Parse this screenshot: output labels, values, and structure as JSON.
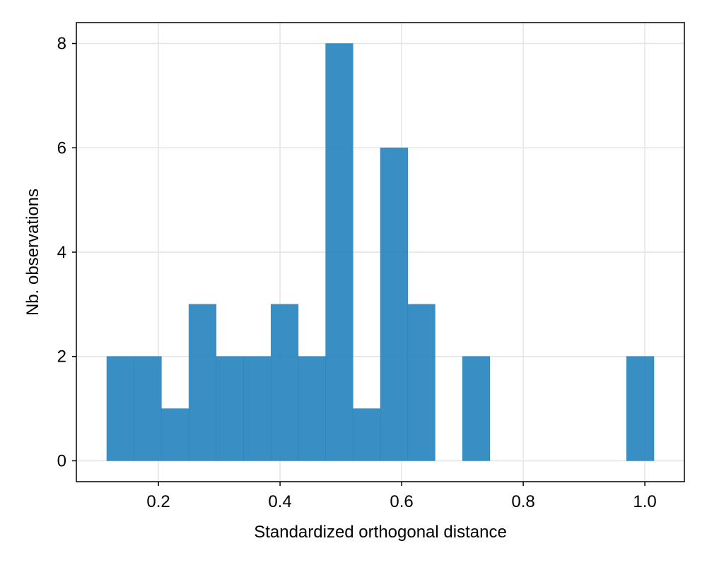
{
  "chart_data": {
    "type": "bar",
    "subtype": "histogram",
    "title": "",
    "xlabel": "Standardized orthogonal distance",
    "ylabel": "Nb. observations",
    "xlim": [
      0.065,
      1.065
    ],
    "ylim": [
      -0.4,
      8.4
    ],
    "xticks": [
      0.2,
      0.4,
      0.6,
      0.8,
      1.0
    ],
    "xtick_labels": [
      "0.2",
      "0.4",
      "0.6",
      "0.8",
      "1.0"
    ],
    "yticks": [
      0,
      2,
      4,
      6,
      8
    ],
    "ytick_labels": [
      "0",
      "2",
      "4",
      "6",
      "8"
    ],
    "grid": true,
    "legend": "none",
    "bar_color": "#2a85be",
    "grid_color": "#e4e4e4",
    "bins": [
      {
        "x0": 0.115,
        "x1": 0.16,
        "count": 2
      },
      {
        "x0": 0.16,
        "x1": 0.205,
        "count": 2
      },
      {
        "x0": 0.205,
        "x1": 0.25,
        "count": 1
      },
      {
        "x0": 0.25,
        "x1": 0.295,
        "count": 3
      },
      {
        "x0": 0.295,
        "x1": 0.34,
        "count": 2
      },
      {
        "x0": 0.34,
        "x1": 0.385,
        "count": 2
      },
      {
        "x0": 0.385,
        "x1": 0.43,
        "count": 3
      },
      {
        "x0": 0.43,
        "x1": 0.475,
        "count": 2
      },
      {
        "x0": 0.475,
        "x1": 0.52,
        "count": 8
      },
      {
        "x0": 0.52,
        "x1": 0.565,
        "count": 1
      },
      {
        "x0": 0.565,
        "x1": 0.61,
        "count": 6
      },
      {
        "x0": 0.61,
        "x1": 0.655,
        "count": 3
      },
      {
        "x0": 0.655,
        "x1": 0.7,
        "count": 0
      },
      {
        "x0": 0.7,
        "x1": 0.745,
        "count": 2
      },
      {
        "x0": 0.745,
        "x1": 0.79,
        "count": 0
      },
      {
        "x0": 0.79,
        "x1": 0.835,
        "count": 0
      },
      {
        "x0": 0.835,
        "x1": 0.88,
        "count": 0
      },
      {
        "x0": 0.88,
        "x1": 0.925,
        "count": 0
      },
      {
        "x0": 0.925,
        "x1": 0.97,
        "count": 0
      },
      {
        "x0": 0.97,
        "x1": 1.015,
        "count": 2
      }
    ]
  }
}
